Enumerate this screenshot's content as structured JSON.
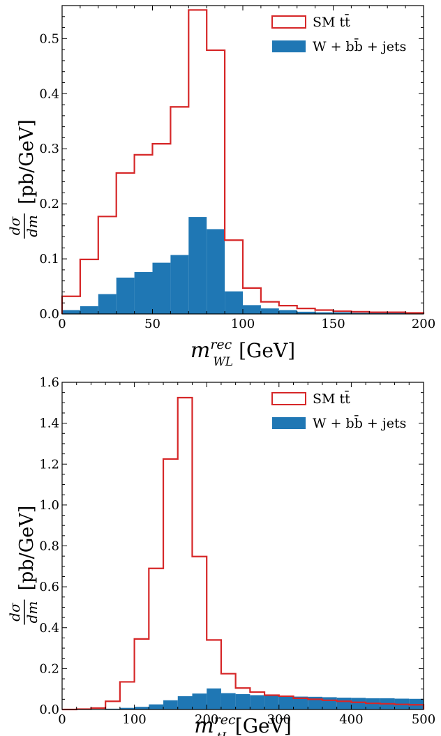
{
  "chart_data": [
    {
      "type": "histogram",
      "xlabel": "m_{W_L}^{rec} [GeV]",
      "ylabel": "dσ/dm [pb/GeV]",
      "xlim": [
        0,
        200
      ],
      "ylim": [
        0,
        0.56
      ],
      "xticks": [
        0,
        50,
        100,
        150,
        200
      ],
      "yticks": [
        0.0,
        0.1,
        0.2,
        0.3,
        0.4,
        0.5
      ],
      "ytick_labels": [
        "0.0",
        "0.1",
        "0.2",
        "0.3",
        "0.4",
        "0.5"
      ],
      "bin_edges": [
        0,
        10,
        20,
        30,
        40,
        50,
        60,
        70,
        80,
        90,
        100,
        110,
        120,
        130,
        140,
        150,
        160,
        170,
        180,
        190,
        200
      ],
      "legend_position": "top-right",
      "series": [
        {
          "name": "SM tt̄",
          "style": "step",
          "color": "#d62728",
          "values": [
            0.032,
            0.099,
            0.177,
            0.256,
            0.289,
            0.309,
            0.376,
            0.552,
            0.479,
            0.134,
            0.047,
            0.022,
            0.015,
            0.01,
            0.007,
            0.005,
            0.004,
            0.003,
            0.003,
            0.002
          ]
        },
        {
          "name": "W + bb̄ + jets",
          "style": "filled",
          "color": "#1f77b4",
          "values": [
            0.007,
            0.014,
            0.036,
            0.066,
            0.076,
            0.093,
            0.107,
            0.176,
            0.154,
            0.041,
            0.016,
            0.01,
            0.007,
            0.004,
            0.003,
            0.003,
            0.002,
            0.002,
            0.002,
            0.001
          ]
        }
      ]
    },
    {
      "type": "histogram",
      "xlabel": "m_{t_L}^{rec} [GeV]",
      "ylabel": "dσ/dm [pb/GeV]",
      "xlim": [
        0,
        500
      ],
      "ylim": [
        0,
        1.6
      ],
      "xticks": [
        0,
        100,
        200,
        300,
        400,
        500
      ],
      "yticks": [
        0.0,
        0.2,
        0.4,
        0.6,
        0.8,
        1.0,
        1.2,
        1.4,
        1.6
      ],
      "ytick_labels": [
        "0.0",
        "0.2",
        "0.4",
        "0.6",
        "0.8",
        "1.0",
        "1.2",
        "1.4",
        "1.6"
      ],
      "bin_edges": [
        0,
        20,
        40,
        60,
        80,
        100,
        120,
        140,
        160,
        180,
        200,
        220,
        240,
        260,
        280,
        300,
        320,
        340,
        360,
        380,
        400,
        420,
        440,
        460,
        480,
        500
      ],
      "legend_position": "top-right",
      "series": [
        {
          "name": "SM tt̄",
          "style": "step",
          "color": "#d62728",
          "values": [
            0.0,
            0.002,
            0.007,
            0.04,
            0.135,
            0.345,
            0.69,
            1.225,
            1.525,
            0.748,
            0.34,
            0.175,
            0.105,
            0.085,
            0.07,
            0.065,
            0.055,
            0.05,
            0.045,
            0.04,
            0.035,
            0.03,
            0.028,
            0.025,
            0.023
          ]
        },
        {
          "name": "W + bb̄ + jets",
          "style": "filled",
          "color": "#1f77b4",
          "values": [
            0.0,
            0.001,
            0.002,
            0.004,
            0.008,
            0.013,
            0.025,
            0.045,
            0.065,
            0.078,
            0.103,
            0.08,
            0.075,
            0.07,
            0.068,
            0.065,
            0.063,
            0.062,
            0.06,
            0.058,
            0.057,
            0.055,
            0.055,
            0.053,
            0.052
          ]
        }
      ]
    }
  ]
}
